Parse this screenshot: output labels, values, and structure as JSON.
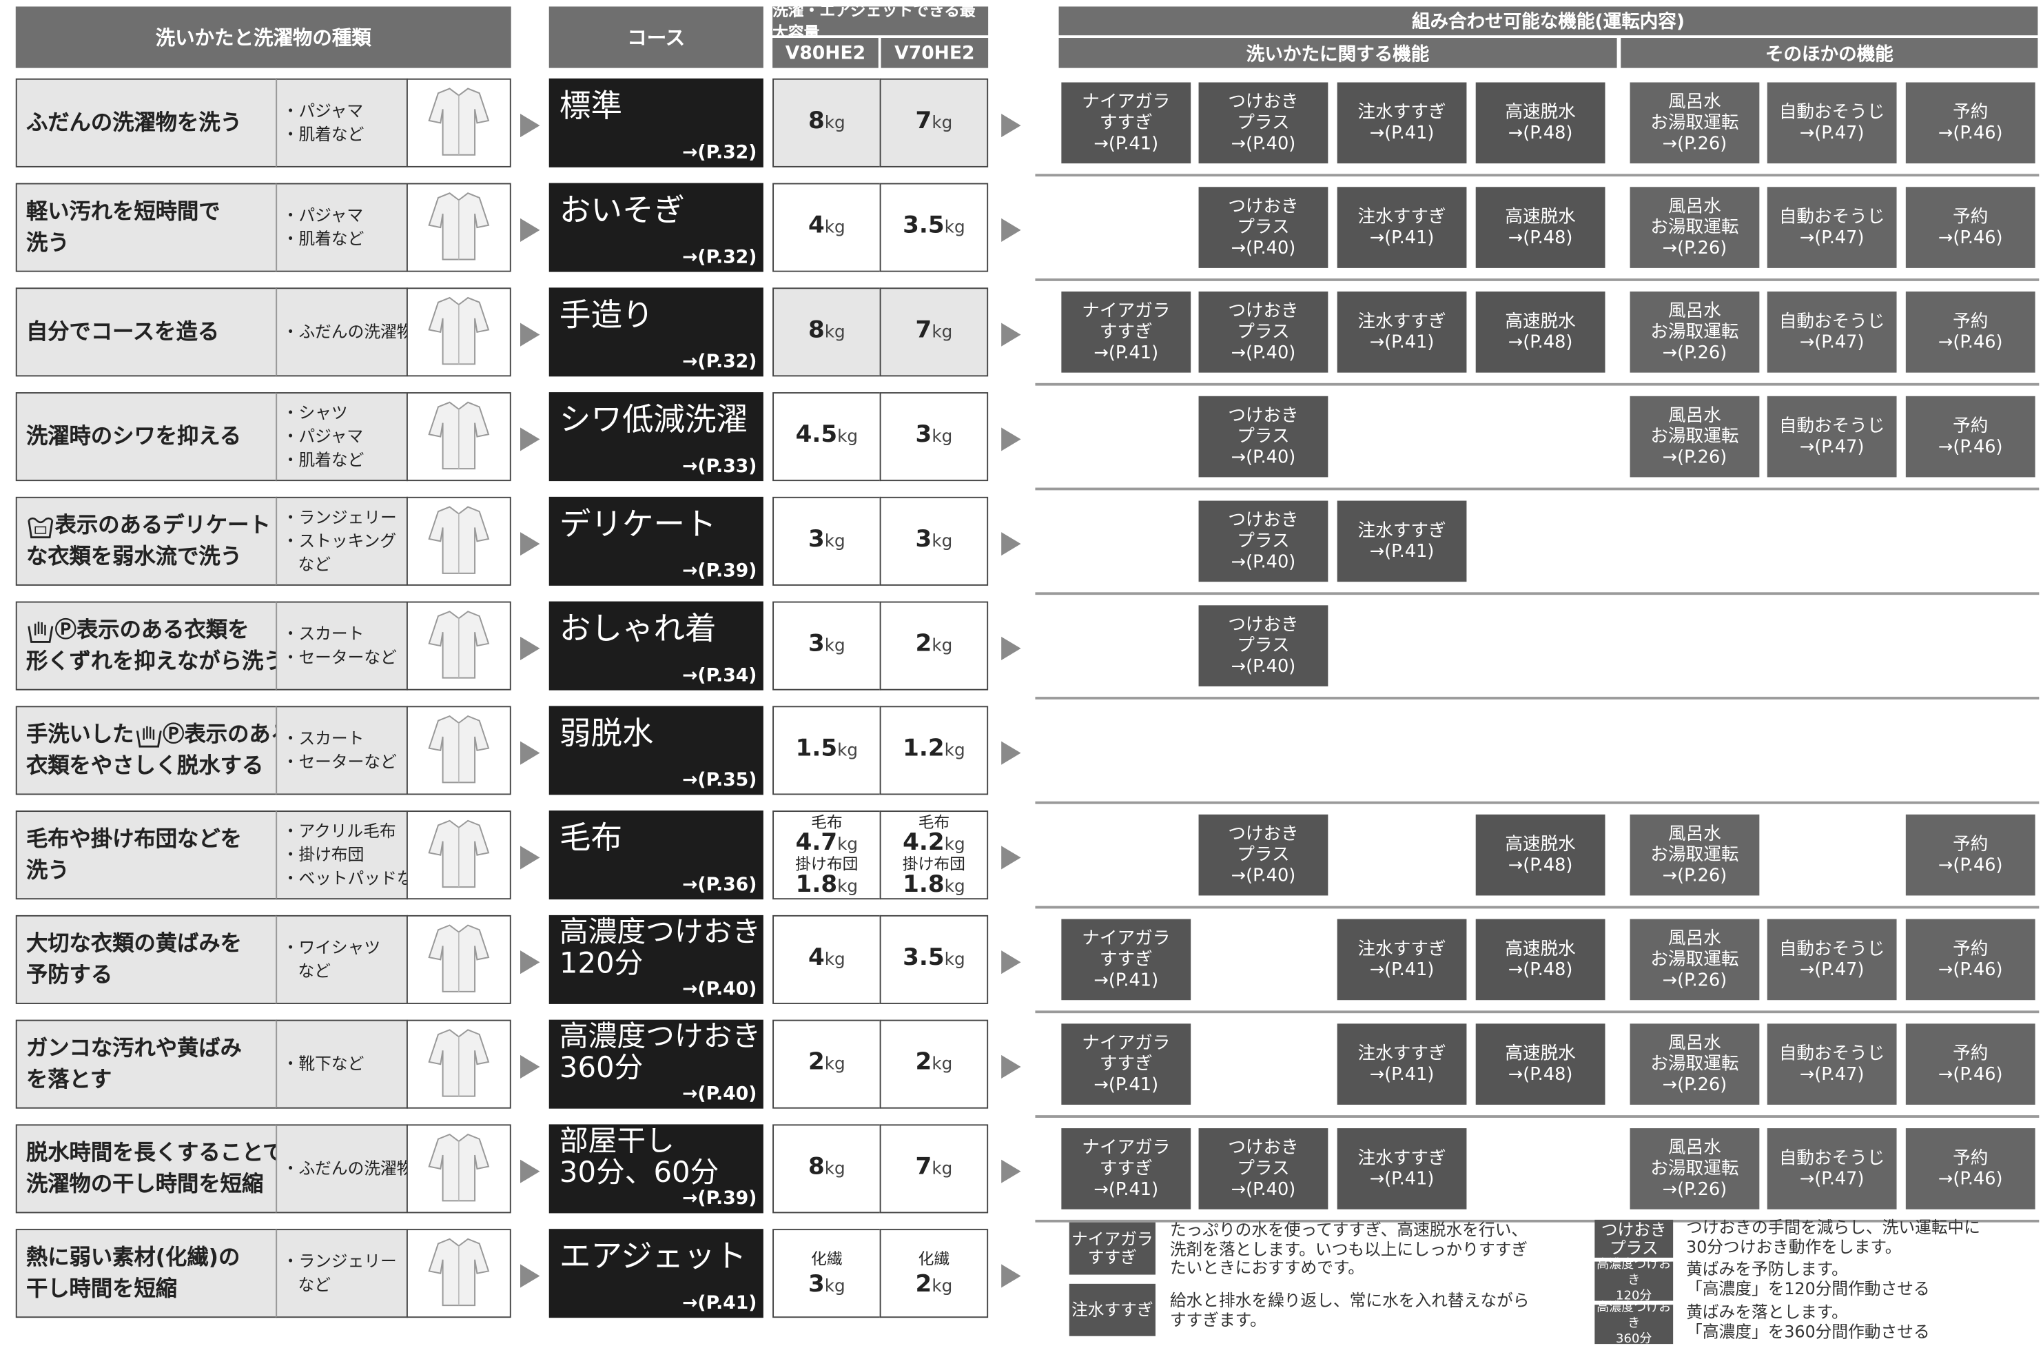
{
  "header": {
    "type_title": "洗いかたと洗濯物の種類",
    "course_title": "コース",
    "capacity_title": "洗濯・エアジェットできる最大容量",
    "models": [
      "V80HE2",
      "V70HE2"
    ],
    "function_title": "組み合わせ可能な機能(運転内容)",
    "function_groups": [
      "洗いかたに関する機能",
      "そのほかの機能"
    ]
  },
  "rows": [
    {
      "description": [
        [
          "ふだんの洗濯物を洗う"
        ]
      ],
      "items": [
        "・パジャマ",
        "・肌着など"
      ],
      "course": [
        "標準"
      ],
      "page": "→(P.32)",
      "capacity": [
        [
          {
            "num": "8",
            "unit": "kg"
          }
        ],
        [
          {
            "num": "7",
            "unit": "kg"
          }
        ]
      ],
      "functions": [
        [
          "ナイアガラ",
          "すすぎ",
          "→(P.41)"
        ],
        [
          "つけおき",
          "プラス",
          "→(P.40)"
        ],
        [
          "注水すすぎ",
          "→(P.41)"
        ],
        [
          "高速脱水",
          "→(P.48)"
        ],
        [
          "風呂水",
          "お湯取運転",
          "→(P.26)"
        ],
        [
          "自動おそうじ",
          "→(P.47)"
        ],
        [
          "予約",
          "→(P.46)"
        ]
      ]
    },
    {
      "description": [
        [
          "軽い汚れを短時間で"
        ],
        [
          "洗う"
        ]
      ],
      "items": [
        "・パジャマ",
        "・肌着など"
      ],
      "course": [
        "おいそぎ"
      ],
      "page": "→(P.32)",
      "capacity": [
        [
          {
            "num": "4",
            "unit": "kg"
          }
        ],
        [
          {
            "num": "3.5",
            "unit": "kg"
          }
        ]
      ],
      "functions": [
        null,
        [
          "つけおき",
          "プラス",
          "→(P.40)"
        ],
        [
          "注水すすぎ",
          "→(P.41)"
        ],
        [
          "高速脱水",
          "→(P.48)"
        ],
        [
          "風呂水",
          "お湯取運転",
          "→(P.26)"
        ],
        [
          "自動おそうじ",
          "→(P.47)"
        ],
        [
          "予約",
          "→(P.46)"
        ]
      ]
    },
    {
      "description": [
        [
          "自分でコースを造る"
        ]
      ],
      "items": [
        "・ふだんの洗濯物"
      ],
      "course": [
        "手造り"
      ],
      "page": "→(P.32)",
      "capacity": [
        [
          {
            "num": "8",
            "unit": "kg"
          }
        ],
        [
          {
            "num": "7",
            "unit": "kg"
          }
        ]
      ],
      "functions": [
        [
          "ナイアガラ",
          "すすぎ",
          "→(P.41)"
        ],
        [
          "つけおき",
          "プラス",
          "→(P.40)"
        ],
        [
          "注水すすぎ",
          "→(P.41)"
        ],
        [
          "高速脱水",
          "→(P.48)"
        ],
        [
          "風呂水",
          "お湯取運転",
          "→(P.26)"
        ],
        [
          "自動おそうじ",
          "→(P.47)"
        ],
        [
          "予約",
          "→(P.46)"
        ]
      ]
    },
    {
      "description": [
        [
          "洗濯時のシワを抑える"
        ]
      ],
      "items": [
        "・シャツ",
        "・パジャマ",
        "・肌着など"
      ],
      "course": [
        "シワ低減洗濯"
      ],
      "page": "→(P.33)",
      "capacity": [
        [
          {
            "num": "4.5",
            "unit": "kg"
          }
        ],
        [
          {
            "num": "3",
            "unit": "kg"
          }
        ]
      ],
      "functions": [
        null,
        [
          "つけおき",
          "プラス",
          "→(P.40)"
        ],
        null,
        null,
        [
          "風呂水",
          "お湯取運転",
          "→(P.26)"
        ],
        [
          "自動おそうじ",
          "→(P.47)"
        ],
        [
          "予約",
          "→(P.46)"
        ]
      ]
    },
    {
      "description": [
        [
          "表示のあるデリケート"
        ],
        [
          "な衣類を弱水流で洗う"
        ]
      ],
      "items": [
        "・ランジェリー",
        "・ストッキング",
        "など"
      ],
      "course": [
        "デリケート"
      ],
      "page": "→(P.39)",
      "capacity": [
        [
          {
            "num": "3",
            "unit": "kg"
          }
        ],
        [
          {
            "num": "3",
            "unit": "kg"
          }
        ]
      ],
      "functions": [
        null,
        [
          "つけおき",
          "プラス",
          "→(P.40)"
        ],
        [
          "注水すすぎ",
          "→(P.41)"
        ],
        null,
        null,
        null,
        null
      ]
    },
    {
      "description": [
        [
          "Ⓟ表示のある衣類を"
        ],
        [
          "形くずれを抑えながら洗う"
        ]
      ],
      "items": [
        "・スカート",
        "・セーターなど"
      ],
      "course": [
        "おしゃれ着"
      ],
      "page": "→(P.34)",
      "capacity": [
        [
          {
            "num": "3",
            "unit": "kg"
          }
        ],
        [
          {
            "num": "2",
            "unit": "kg"
          }
        ]
      ],
      "functions": [
        null,
        [
          "つけおき",
          "プラス",
          "→(P.40)"
        ],
        null,
        null,
        null,
        null,
        null
      ]
    },
    {
      "description": [
        [
          "手洗いした",
          "Ⓟ表示のある"
        ],
        [
          "衣類をやさしく脱水する"
        ]
      ],
      "items": [
        "・スカート",
        "・セーターなど"
      ],
      "course": [
        "弱脱水"
      ],
      "page": "→(P.35)",
      "capacity": [
        [
          {
            "num": "1.5",
            "unit": "kg"
          }
        ],
        [
          {
            "num": "1.2",
            "unit": "kg"
          }
        ]
      ],
      "functions": [
        null,
        null,
        null,
        null,
        null,
        null,
        null
      ]
    },
    {
      "description": [
        [
          "毛布や掛け布団などを"
        ],
        [
          "洗う"
        ]
      ],
      "items": [
        "・アクリル毛布",
        "・掛け布団",
        "・ベットパッドなど"
      ],
      "course": [
        "毛布"
      ],
      "page": "→(P.36)",
      "capacity": [
        [
          {
            "text": "毛布"
          },
          {
            "num": "4.7",
            "unit": "kg"
          },
          {
            "text": "掛け布団"
          },
          {
            "num": "1.8",
            "unit": "kg"
          }
        ],
        [
          {
            "text": "毛布"
          },
          {
            "num": "4.2",
            "unit": "kg"
          },
          {
            "text": "掛け布団"
          },
          {
            "num": "1.8",
            "unit": "kg"
          }
        ]
      ],
      "functions": [
        null,
        [
          "つけおき",
          "プラス",
          "→(P.40)"
        ],
        null,
        [
          "高速脱水",
          "→(P.48)"
        ],
        [
          "風呂水",
          "お湯取運転",
          "→(P.26)"
        ],
        null,
        [
          "予約",
          "→(P.46)"
        ]
      ]
    },
    {
      "description": [
        [
          "大切な衣類の黄ばみを"
        ],
        [
          "予防する"
        ]
      ],
      "items": [
        "・ワイシャツ",
        "など"
      ],
      "course": [
        "高濃度つけおき",
        "120分"
      ],
      "page": "→(P.40)",
      "capacity": [
        [
          {
            "num": "4",
            "unit": "kg"
          }
        ],
        [
          {
            "num": "3.5",
            "unit": "kg"
          }
        ]
      ],
      "functions": [
        [
          "ナイアガラ",
          "すすぎ",
          "→(P.41)"
        ],
        null,
        [
          "注水すすぎ",
          "→(P.41)"
        ],
        [
          "高速脱水",
          "→(P.48)"
        ],
        [
          "風呂水",
          "お湯取運転",
          "→(P.26)"
        ],
        [
          "自動おそうじ",
          "→(P.47)"
        ],
        [
          "予約",
          "→(P.46)"
        ]
      ]
    },
    {
      "description": [
        [
          "ガンコな汚れや黄ばみ"
        ],
        [
          "を落とす"
        ]
      ],
      "items": [
        "・靴下など"
      ],
      "course": [
        "高濃度つけおき",
        "360分"
      ],
      "page": "→(P.40)",
      "capacity": [
        [
          {
            "num": "2",
            "unit": "kg"
          }
        ],
        [
          {
            "num": "2",
            "unit": "kg"
          }
        ]
      ],
      "functions": [
        [
          "ナイアガラ",
          "すすぎ",
          "→(P.41)"
        ],
        null,
        [
          "注水すすぎ",
          "→(P.41)"
        ],
        [
          "高速脱水",
          "→(P.48)"
        ],
        [
          "風呂水",
          "お湯取運転",
          "→(P.26)"
        ],
        [
          "自動おそうじ",
          "→(P.47)"
        ],
        [
          "予約",
          "→(P.46)"
        ]
      ]
    },
    {
      "description": [
        [
          "脱水時間を長くすることで"
        ],
        [
          "洗濯物の干し時間を短縮"
        ]
      ],
      "items": [
        "・ふだんの洗濯物"
      ],
      "course": [
        "部屋干し",
        "30分、60分"
      ],
      "page": "→(P.39)",
      "capacity": [
        [
          {
            "num": "8",
            "unit": "kg"
          }
        ],
        [
          {
            "num": "7",
            "unit": "kg"
          }
        ]
      ],
      "functions": [
        [
          "ナイアガラ",
          "すすぎ",
          "→(P.41)"
        ],
        [
          "つけおき",
          "プラス",
          "→(P.40)"
        ],
        [
          "注水すすぎ",
          "→(P.41)"
        ],
        null,
        [
          "風呂水",
          "お湯取運転",
          "→(P.26)"
        ],
        [
          "自動おそうじ",
          "→(P.47)"
        ],
        [
          "予約",
          "→(P.46)"
        ]
      ]
    },
    {
      "description": [
        [
          "熱に弱い素材(化繊)の"
        ],
        [
          "干し時間を短縮"
        ]
      ],
      "items": [
        "・ランジェリー",
        "など"
      ],
      "course": [
        "エアジェット"
      ],
      "page": "→(P.41)",
      "capacity": [
        [
          {
            "text": "化繊"
          },
          {
            "num": "3",
            "unit": "kg"
          }
        ],
        [
          {
            "text": "化繊"
          },
          {
            "num": "2",
            "unit": "kg"
          }
        ]
      ],
      "functions": [
        null,
        null,
        null,
        null,
        null,
        null,
        null
      ]
    }
  ],
  "legend": [
    {
      "tag": [
        "ナイアガラ",
        "すすぎ"
      ],
      "text": [
        "たっぷりの水を使ってすすぎ、高速脱水を行い、",
        "洗剤を落とします。いつも以上にしっかりすすぎ",
        "たいときにおすすめです。"
      ]
    },
    {
      "tag": [
        "注水すすぎ"
      ],
      "text": [
        "給水と排水を繰り返し、常に水を入れ替えながら",
        "すすぎます。"
      ]
    },
    {
      "tag": [
        "つけおき",
        "プラス"
      ],
      "text": [
        "つけおきの手間を減らし、洗い運転中に",
        "30分つけおき動作をします。"
      ]
    },
    {
      "tag": [
        "高濃度つけおき",
        "120分"
      ],
      "text": [
        "黄ばみを予防します。",
        "「高濃度」を120分間作動させる"
      ]
    },
    {
      "tag": [
        "高濃度つけおき",
        "360分"
      ],
      "text": [
        "黄ばみを落とします。",
        "「高濃度」を360分間作動させる"
      ]
    }
  ]
}
